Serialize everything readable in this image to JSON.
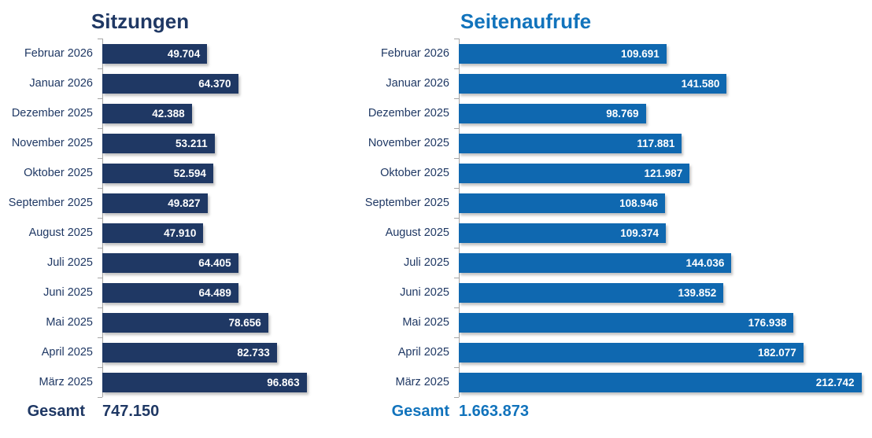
{
  "page": {
    "background_color": "#ffffff"
  },
  "chart_data": [
    {
      "type": "bar",
      "orientation": "horizontal",
      "title": "Sitzungen",
      "categories": [
        "Februar 2026",
        "Januar 2026",
        "Dezember 2025",
        "November 2025",
        "Oktober 2025",
        "September 2025",
        "August 2025",
        "Juli 2025",
        "Juni 2025",
        "Mai 2025",
        "April 2025",
        "März 2025"
      ],
      "values": [
        49704,
        64370,
        42388,
        53211,
        52594,
        49827,
        47910,
        64405,
        64489,
        78656,
        82733,
        96863
      ],
      "value_labels": [
        "49.704",
        "64.370",
        "42.388",
        "53.211",
        "52.594",
        "49.827",
        "47.910",
        "64.405",
        "64.489",
        "78.656",
        "82.733",
        "96.863"
      ],
      "total_label": "Gesamt",
      "total_value": "747.150",
      "xlim": [
        0,
        100000
      ],
      "grid": false,
      "legend": false,
      "value_label_position": "inside-end",
      "bar_color": "#1F3864",
      "title_color": "#1F3864",
      "label_color": "#1F3864",
      "axis_color": "#A6A6A6"
    },
    {
      "type": "bar",
      "orientation": "horizontal",
      "title": "Seitenaufrufe",
      "categories": [
        "Februar 2026",
        "Januar 2026",
        "Dezember 2025",
        "November 2025",
        "Oktober 2025",
        "September 2025",
        "August 2025",
        "Juli 2025",
        "Juni 2025",
        "Mai 2025",
        "April 2025",
        "März 2025"
      ],
      "values": [
        109691,
        141580,
        98769,
        117881,
        121987,
        108946,
        109374,
        144036,
        139852,
        176938,
        182077,
        212742
      ],
      "value_labels": [
        "109.691",
        "141.580",
        "98.769",
        "117.881",
        "121.987",
        "108.946",
        "109.374",
        "144.036",
        "139.852",
        "176.938",
        "182.077",
        "212.742"
      ],
      "total_label": "Gesamt",
      "total_value": "1.663.873",
      "xlim": [
        0,
        215000
      ],
      "grid": false,
      "legend": false,
      "value_label_position": "inside-end",
      "bar_color": "#0F68B0",
      "title_color": "#1173BC",
      "label_color": "#1F3864",
      "axis_color": "#A6A6A6"
    }
  ]
}
